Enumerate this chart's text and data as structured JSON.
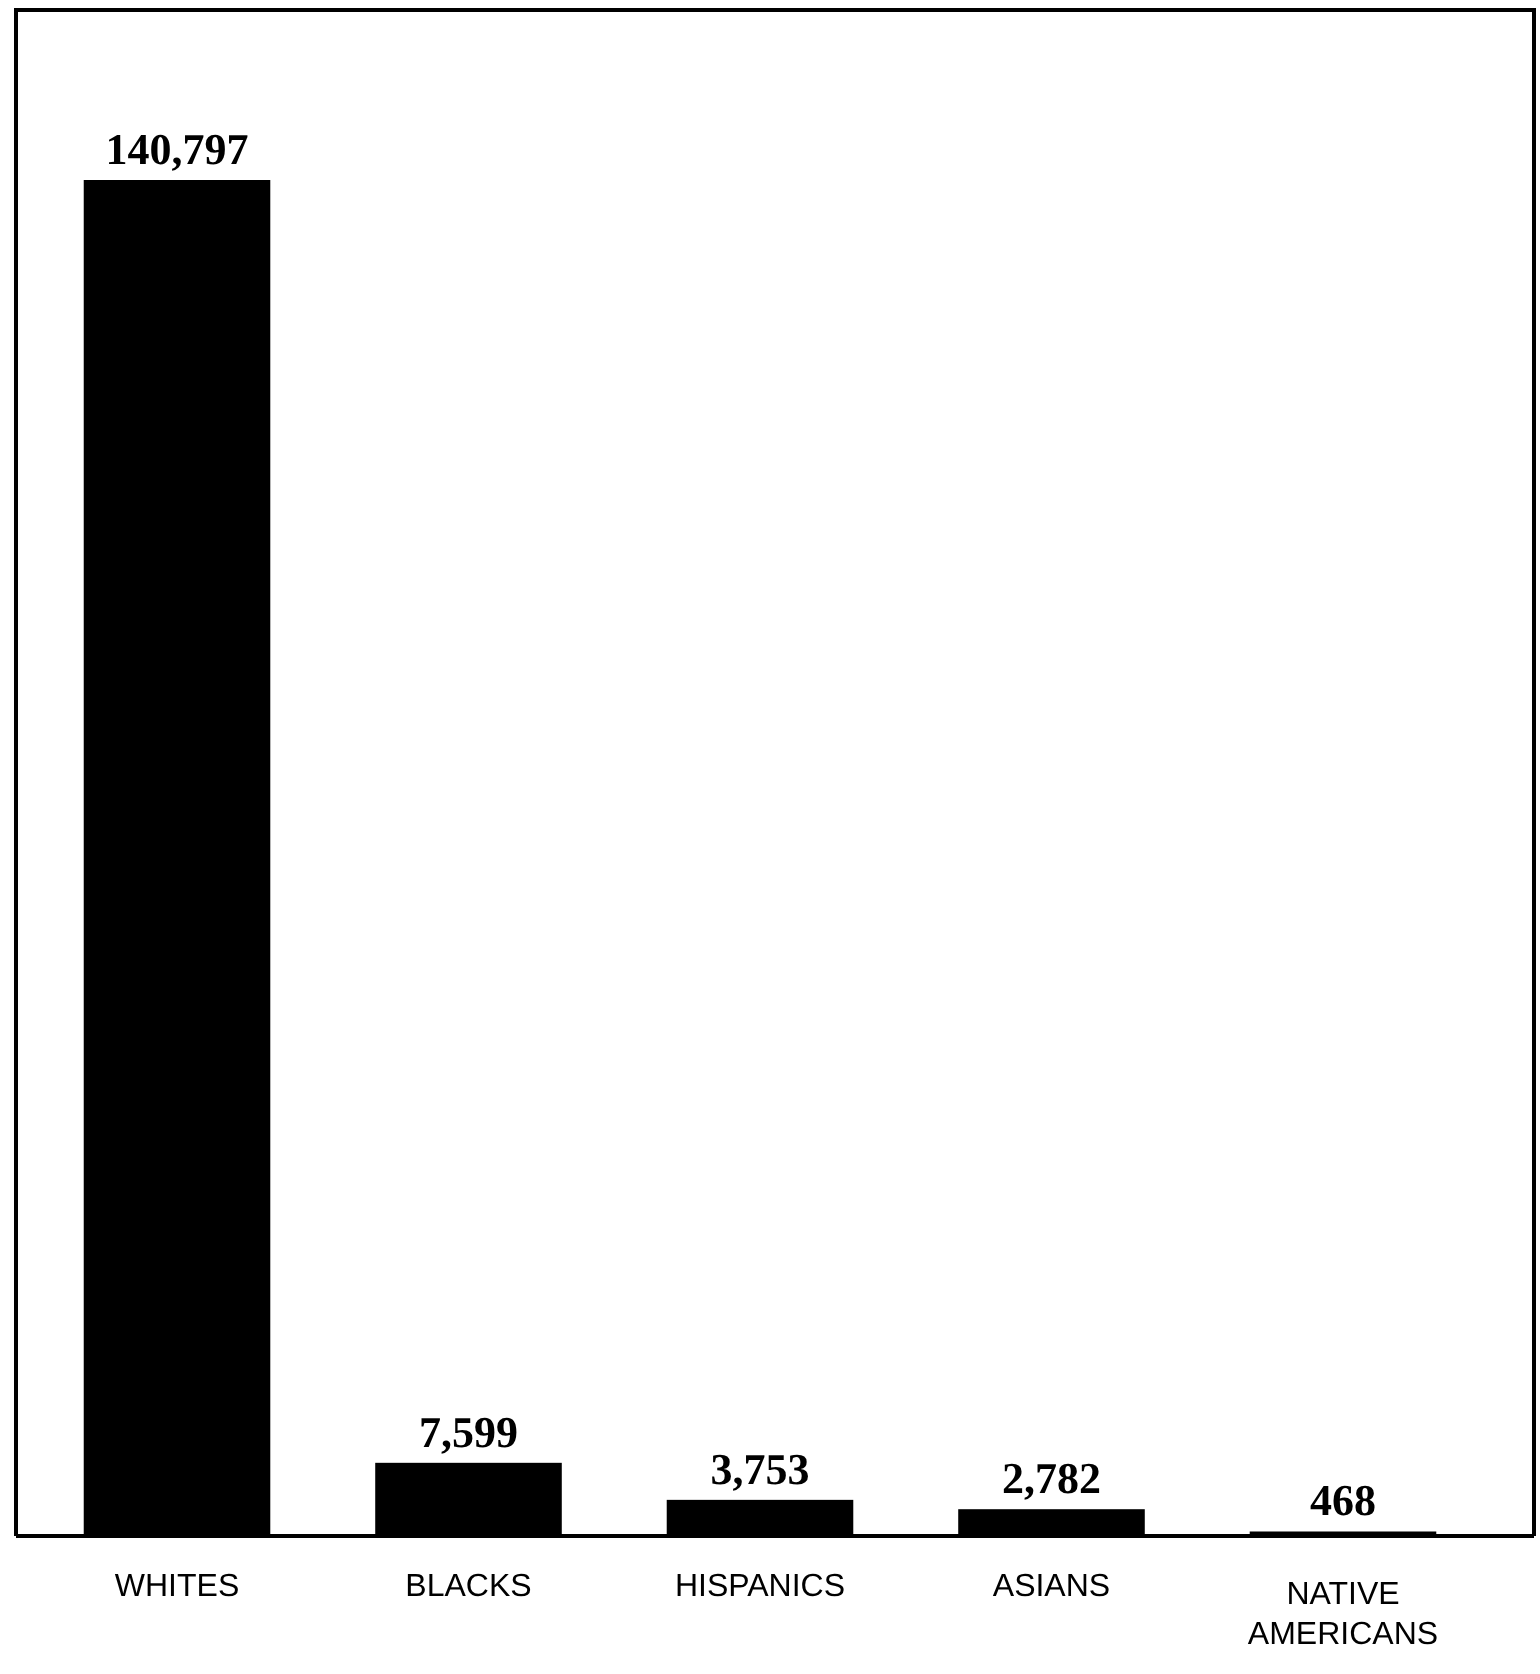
{
  "chart_data": {
    "type": "bar",
    "categories": [
      "WHITES",
      "BLACKS",
      "HISPANICS",
      "ASIANS",
      "NATIVE AMERICANS"
    ],
    "values": [
      140797,
      7599,
      3753,
      2782,
      468
    ],
    "color": "#000000",
    "data_labels": true,
    "value_labels": [
      "140,797",
      "7,599",
      "3,753",
      "2,782",
      "468"
    ]
  }
}
